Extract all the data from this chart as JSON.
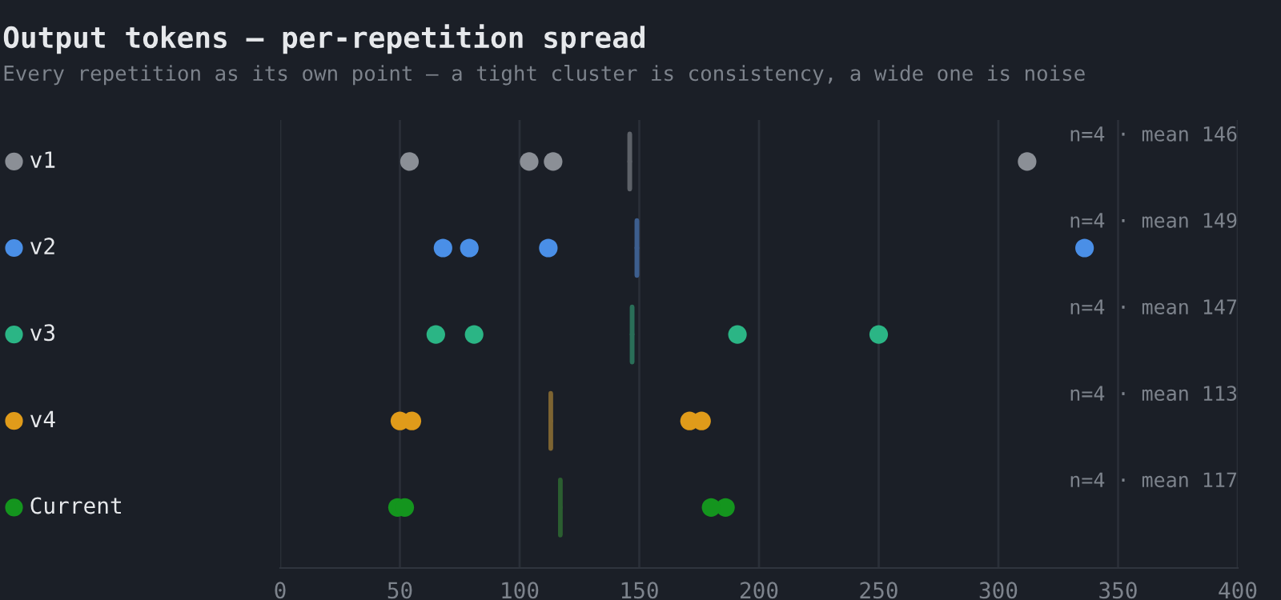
{
  "chart_data": {
    "type": "scatter",
    "orientation": "horizontal",
    "title": "Output tokens — per-repetition spread",
    "subtitle": "Every repetition as its own point — a tight cluster is consistency, a wide one is noise",
    "categories": [
      "v1",
      "v2",
      "v3",
      "v4",
      "Current"
    ],
    "series": [
      {
        "color": "#8b8f96",
        "x": [
          "v1",
          "v1",
          "v1",
          "v1"
        ],
        "values": [
          54,
          104,
          114,
          312
        ]
      },
      {
        "color": "#4a8fe7",
        "x": [
          "v2",
          "v2",
          "v2",
          "v2"
        ],
        "values": [
          68,
          79,
          112,
          336
        ]
      },
      {
        "color": "#2bb585",
        "x": [
          "v3",
          "v3",
          "v3",
          "v3"
        ],
        "values": [
          65,
          81,
          191,
          250
        ]
      },
      {
        "color": "#e09b1a",
        "x": [
          "v4",
          "v4",
          "v4",
          "v4"
        ],
        "values": [
          55,
          50,
          171,
          176
        ]
      },
      {
        "color": "#14951e",
        "x": [
          "Current",
          "Current",
          "Current",
          "Current"
        ],
        "values": [
          49,
          52,
          186,
          180
        ]
      },
      {
        "type": "box",
        "colors": [
          "#5d6168",
          "#3d5e8e",
          "#2a6e58",
          "#7d6432",
          "#2b5e30"
        ],
        "x": [
          "v1",
          "v2",
          "v3",
          "v4",
          "Current"
        ],
        "boxes": [
          {
            "low": 146,
            "q1": 146,
            "median": 146,
            "q3": 146,
            "high": 146
          },
          {
            "low": 149,
            "q1": 149,
            "median": 149,
            "q3": 149,
            "high": 149
          },
          {
            "low": 147,
            "q1": 147,
            "median": 147,
            "q3": 147,
            "high": 147
          },
          {
            "low": 113,
            "q1": 113,
            "median": 113,
            "q3": 113,
            "high": 113
          },
          {
            "low": 117,
            "q1": 117,
            "median": 117,
            "q3": 117,
            "high": 117
          }
        ]
      }
    ],
    "annotations": [
      "n=4 · mean 146",
      "n=4 · mean 149",
      "n=4 · mean 147",
      "n=4 · mean 113",
      "n=4 · mean 117"
    ],
    "xlim": [
      0,
      400
    ],
    "xticks": [
      0,
      50,
      100,
      150,
      200,
      250,
      300,
      350,
      400
    ],
    "grid": "x",
    "legend": false,
    "marker": "circle"
  }
}
